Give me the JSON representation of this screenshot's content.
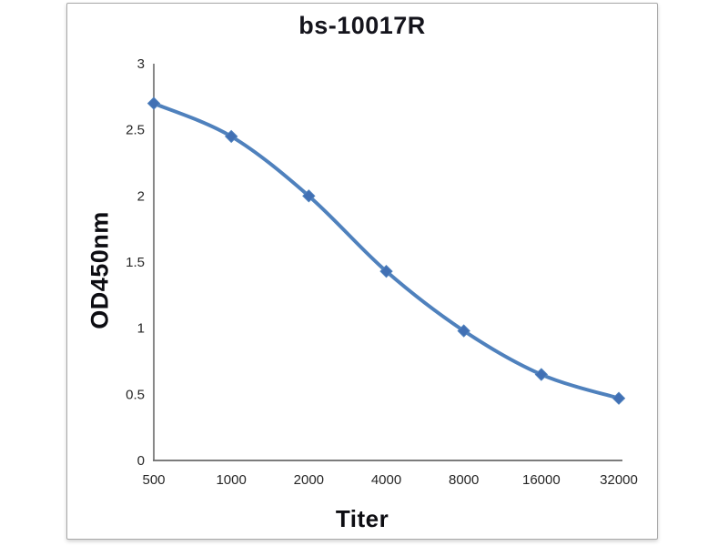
{
  "chart_data": {
    "type": "line",
    "title": "bs-10017R",
    "xlabel": "Titer",
    "ylabel": "OD450nm",
    "categories": [
      "500",
      "1000",
      "2000",
      "4000",
      "8000",
      "16000",
      "32000"
    ],
    "series": [
      {
        "name": "OD450nm",
        "values": [
          2.7,
          2.45,
          2.0,
          1.43,
          0.98,
          0.65,
          0.47
        ]
      }
    ],
    "ylim": [
      0,
      3
    ],
    "yticks": [
      0,
      0.5,
      1,
      1.5,
      2,
      2.5,
      3
    ],
    "ytick_labels": [
      "0",
      "0.5",
      "1",
      "1.5",
      "2",
      "2.5",
      "3"
    ],
    "grid": false,
    "legend_position": "none",
    "marker": "diamond",
    "line_smooth": true,
    "colors": {
      "line": "#4f81bd",
      "marker": "#4170b4",
      "axis": "#6a6a6a",
      "title_text": "#14141c",
      "tick_text": "#262626",
      "frame_border": "#a8a8a8",
      "background": "#ffffff"
    }
  }
}
